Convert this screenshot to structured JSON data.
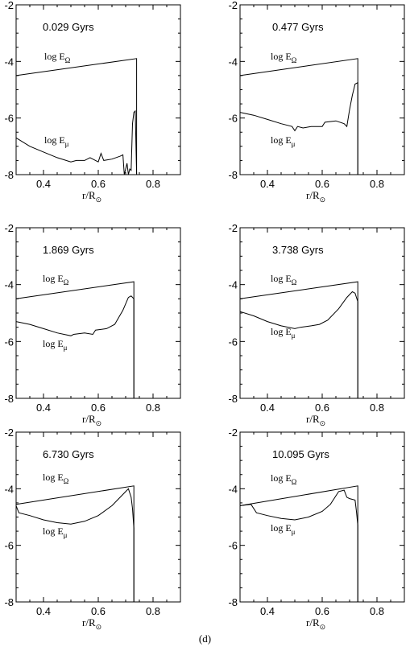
{
  "caption": "(d)",
  "xaxis_label": {
    "main": "r/R",
    "sub": "⊙"
  },
  "series_labels": {
    "omega": {
      "main": "log E",
      "sub": "Ω"
    },
    "mu": {
      "main": "log E",
      "sub": "μ"
    }
  },
  "chart_data": [
    {
      "type": "line",
      "panel_label": "0.029 Gyrs",
      "xlim": [
        0.3,
        0.9
      ],
      "ylim": [
        -8,
        -2
      ],
      "xticks": [
        0.4,
        0.6,
        0.8
      ],
      "yticks": [
        -2,
        -4,
        -6,
        -8
      ],
      "series": [
        {
          "key": "omega",
          "points": [
            [
              0.3,
              -4.5
            ],
            [
              0.74,
              -3.9
            ],
            [
              0.74,
              -8
            ]
          ]
        },
        {
          "key": "mu",
          "points": [
            [
              0.3,
              -6.7
            ],
            [
              0.35,
              -7.0
            ],
            [
              0.4,
              -7.2
            ],
            [
              0.45,
              -7.4
            ],
            [
              0.5,
              -7.55
            ],
            [
              0.52,
              -7.5
            ],
            [
              0.55,
              -7.5
            ],
            [
              0.57,
              -7.4
            ],
            [
              0.59,
              -7.5
            ],
            [
              0.6,
              -7.55
            ],
            [
              0.61,
              -7.25
            ],
            [
              0.62,
              -7.5
            ],
            [
              0.65,
              -7.45
            ],
            [
              0.68,
              -7.35
            ],
            [
              0.69,
              -7.3
            ],
            [
              0.695,
              -8
            ],
            [
              0.7,
              -7.8
            ],
            [
              0.705,
              -7.6
            ],
            [
              0.71,
              -8
            ],
            [
              0.715,
              -7.8
            ],
            [
              0.72,
              -7.85
            ],
            [
              0.725,
              -6.2
            ],
            [
              0.73,
              -5.8
            ],
            [
              0.735,
              -5.75
            ],
            [
              0.74,
              -8
            ]
          ]
        }
      ]
    },
    {
      "type": "line",
      "panel_label": "0.477 Gyrs",
      "xlim": [
        0.3,
        0.9
      ],
      "ylim": [
        -8,
        -2
      ],
      "xticks": [
        0.4,
        0.6,
        0.8
      ],
      "yticks": [
        -2,
        -4,
        -6,
        -8
      ],
      "series": [
        {
          "key": "omega",
          "points": [
            [
              0.3,
              -4.5
            ],
            [
              0.73,
              -3.9
            ],
            [
              0.73,
              -8
            ]
          ]
        },
        {
          "key": "mu",
          "points": [
            [
              0.3,
              -5.8
            ],
            [
              0.35,
              -5.9
            ],
            [
              0.4,
              -6.05
            ],
            [
              0.45,
              -6.2
            ],
            [
              0.49,
              -6.3
            ],
            [
              0.5,
              -6.45
            ],
            [
              0.51,
              -6.3
            ],
            [
              0.53,
              -6.35
            ],
            [
              0.56,
              -6.3
            ],
            [
              0.6,
              -6.3
            ],
            [
              0.61,
              -6.15
            ],
            [
              0.65,
              -6.1
            ],
            [
              0.68,
              -6.2
            ],
            [
              0.69,
              -6.3
            ],
            [
              0.7,
              -5.7
            ],
            [
              0.71,
              -5.2
            ],
            [
              0.72,
              -4.8
            ],
            [
              0.73,
              -4.75
            ],
            [
              0.73,
              -8
            ]
          ]
        }
      ]
    },
    {
      "type": "line",
      "panel_label": "1.869 Gyrs",
      "xlim": [
        0.3,
        0.9
      ],
      "ylim": [
        -8,
        -2
      ],
      "xticks": [
        0.4,
        0.6,
        0.8
      ],
      "yticks": [
        -2,
        -4,
        -6,
        -8
      ],
      "series": [
        {
          "key": "omega",
          "points": [
            [
              0.3,
              -4.5
            ],
            [
              0.73,
              -3.9
            ],
            [
              0.73,
              -8
            ]
          ]
        },
        {
          "key": "mu",
          "points": [
            [
              0.3,
              -5.3
            ],
            [
              0.35,
              -5.4
            ],
            [
              0.4,
              -5.55
            ],
            [
              0.45,
              -5.7
            ],
            [
              0.5,
              -5.8
            ],
            [
              0.51,
              -5.75
            ],
            [
              0.55,
              -5.7
            ],
            [
              0.58,
              -5.75
            ],
            [
              0.59,
              -5.6
            ],
            [
              0.63,
              -5.55
            ],
            [
              0.66,
              -5.4
            ],
            [
              0.69,
              -4.9
            ],
            [
              0.71,
              -4.45
            ],
            [
              0.72,
              -4.4
            ],
            [
              0.73,
              -4.5
            ],
            [
              0.73,
              -8
            ]
          ]
        }
      ]
    },
    {
      "type": "line",
      "panel_label": "3.738 Gyrs",
      "xlim": [
        0.3,
        0.9
      ],
      "ylim": [
        -8,
        -2
      ],
      "xticks": [
        0.4,
        0.6,
        0.8
      ],
      "yticks": [
        -2,
        -4,
        -6,
        -8
      ],
      "series": [
        {
          "key": "omega",
          "points": [
            [
              0.3,
              -4.5
            ],
            [
              0.73,
              -3.9
            ],
            [
              0.73,
              -8
            ]
          ]
        },
        {
          "key": "mu",
          "points": [
            [
              0.3,
              -4.95
            ],
            [
              0.35,
              -5.1
            ],
            [
              0.4,
              -5.3
            ],
            [
              0.45,
              -5.45
            ],
            [
              0.5,
              -5.55
            ],
            [
              0.52,
              -5.5
            ],
            [
              0.56,
              -5.45
            ],
            [
              0.59,
              -5.4
            ],
            [
              0.62,
              -5.25
            ],
            [
              0.66,
              -4.85
            ],
            [
              0.69,
              -4.45
            ],
            [
              0.71,
              -4.25
            ],
            [
              0.72,
              -4.3
            ],
            [
              0.73,
              -4.6
            ],
            [
              0.73,
              -8
            ]
          ]
        }
      ]
    },
    {
      "type": "line",
      "panel_label": "6.730 Gyrs",
      "xlim": [
        0.3,
        0.9
      ],
      "ylim": [
        -8,
        -2
      ],
      "xticks": [
        0.4,
        0.6,
        0.8
      ],
      "yticks": [
        -2,
        -4,
        -6,
        -8
      ],
      "series": [
        {
          "key": "omega",
          "points": [
            [
              0.3,
              -4.55
            ],
            [
              0.73,
              -3.9
            ],
            [
              0.73,
              -8
            ]
          ]
        },
        {
          "key": "mu",
          "points": [
            [
              0.3,
              -4.6
            ],
            [
              0.31,
              -4.85
            ],
            [
              0.35,
              -4.95
            ],
            [
              0.4,
              -5.1
            ],
            [
              0.45,
              -5.2
            ],
            [
              0.5,
              -5.25
            ],
            [
              0.55,
              -5.15
            ],
            [
              0.6,
              -4.95
            ],
            [
              0.65,
              -4.6
            ],
            [
              0.68,
              -4.3
            ],
            [
              0.7,
              -4.1
            ],
            [
              0.71,
              -4.0
            ],
            [
              0.72,
              -4.3
            ],
            [
              0.725,
              -4.7
            ],
            [
              0.73,
              -5.4
            ],
            [
              0.73,
              -8
            ]
          ]
        }
      ]
    },
    {
      "type": "line",
      "panel_label": "10.095 Gyrs",
      "xlim": [
        0.3,
        0.9
      ],
      "ylim": [
        -8,
        -2
      ],
      "xticks": [
        0.4,
        0.6,
        0.8
      ],
      "yticks": [
        -2,
        -4,
        -6,
        -8
      ],
      "series": [
        {
          "key": "omega",
          "points": [
            [
              0.3,
              -4.6
            ],
            [
              0.73,
              -3.9
            ],
            [
              0.73,
              -8
            ]
          ]
        },
        {
          "key": "mu",
          "points": [
            [
              0.3,
              -4.6
            ],
            [
              0.34,
              -4.55
            ],
            [
              0.36,
              -4.85
            ],
            [
              0.4,
              -4.95
            ],
            [
              0.45,
              -5.05
            ],
            [
              0.5,
              -5.1
            ],
            [
              0.55,
              -5.0
            ],
            [
              0.6,
              -4.8
            ],
            [
              0.63,
              -4.55
            ],
            [
              0.65,
              -4.25
            ],
            [
              0.66,
              -4.1
            ],
            [
              0.68,
              -4.05
            ],
            [
              0.69,
              -4.3
            ],
            [
              0.7,
              -4.35
            ],
            [
              0.72,
              -4.4
            ],
            [
              0.725,
              -4.8
            ],
            [
              0.73,
              -5.3
            ],
            [
              0.73,
              -8
            ]
          ]
        }
      ]
    }
  ]
}
